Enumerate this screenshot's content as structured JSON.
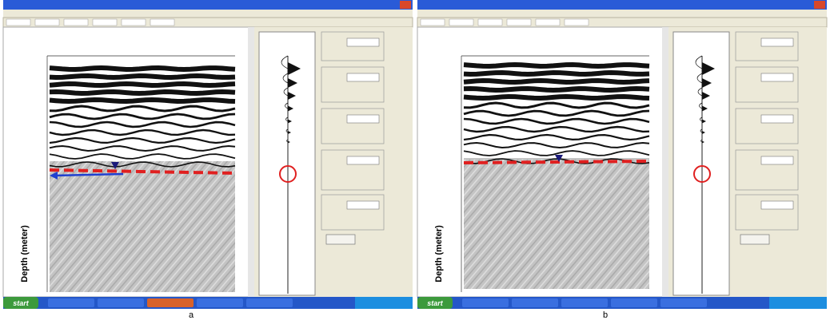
{
  "panels": [
    {
      "caption": "a",
      "depth_label": "Depth (meter)",
      "start": "start"
    },
    {
      "caption": "b",
      "depth_label": "Depth (meter)",
      "start": "start"
    }
  ]
}
